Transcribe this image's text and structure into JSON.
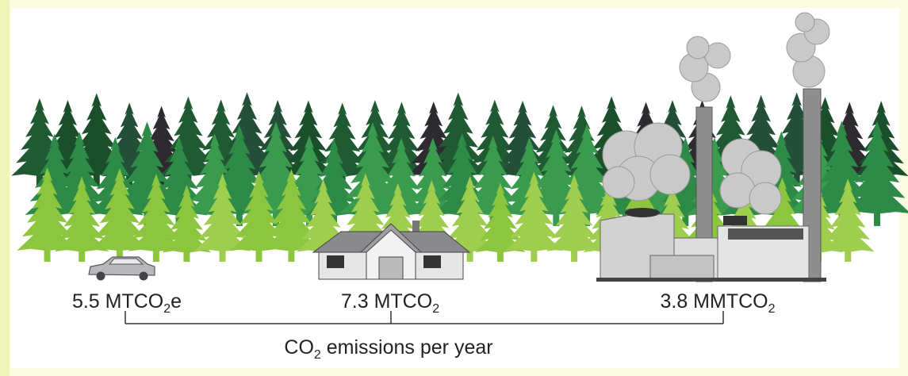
{
  "labels": [
    {
      "text": "5.5 MTCO",
      "sub": "2",
      "tail": "e"
    },
    {
      "text": "7.3 MTCO",
      "sub": "2"
    },
    {
      "text": "3.8 MMTCO",
      "sub": "2"
    }
  ],
  "caption": {
    "text": "CO",
    "sub": "2",
    "tail": " emissions per year"
  }
}
